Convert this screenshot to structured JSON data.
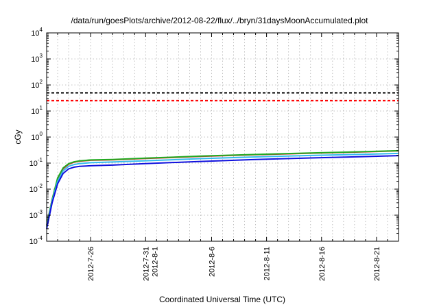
{
  "chart_data": {
    "type": "line",
    "title": "/data/run/goesPlots/archive/2012-08-22/flux/../bryn/31daysMoonAccumulated.plot",
    "xlabel": "Coordinated Universal Time (UTC)",
    "ylabel": "cGy",
    "y_scale": "log",
    "ylim": [
      0.0001,
      10000
    ],
    "xlim": [
      "2012-07-22",
      "2012-08-23"
    ],
    "grid": true,
    "y_ticks": [
      {
        "base": "10",
        "exp": "-4",
        "value": 0.0001
      },
      {
        "base": "10",
        "exp": "-3",
        "value": 0.001
      },
      {
        "base": "10",
        "exp": "-2",
        "value": 0.01
      },
      {
        "base": "10",
        "exp": "-1",
        "value": 0.1
      },
      {
        "base": "10",
        "exp": "0",
        "value": 1
      },
      {
        "base": "10",
        "exp": "1",
        "value": 10
      },
      {
        "base": "10",
        "exp": "2",
        "value": 100
      },
      {
        "base": "10",
        "exp": "3",
        "value": 1000
      },
      {
        "base": "10",
        "exp": "4",
        "value": 10000
      }
    ],
    "x_ticks": [
      {
        "date": "2012-07-26",
        "label": "2012-7-26",
        "label2": ""
      },
      {
        "date": "2012-07-31",
        "label": "2012-7-31",
        "label2": "2012-8-1"
      },
      {
        "date": "2012-08-06",
        "label": "2012-8-6",
        "label2": ""
      },
      {
        "date": "2012-08-11",
        "label": "2012-8-11",
        "label2": ""
      },
      {
        "date": "2012-08-16",
        "label": "2012-8-16",
        "label2": ""
      },
      {
        "date": "2012-08-21",
        "label": "2012-8-21",
        "label2": ""
      }
    ],
    "hlines": [
      {
        "value": 50,
        "color": "#000000",
        "style": "dashed"
      },
      {
        "value": 25,
        "color": "#ff0000",
        "style": "dashed"
      }
    ],
    "series": [
      {
        "color": "#e03030",
        "x": [
          "2012-07-22",
          "2012-07-22 12:00",
          "2012-07-23",
          "2012-07-23 12:00",
          "2012-07-24",
          "2012-07-24 12:00",
          "2012-07-25",
          "2012-07-26",
          "2012-07-28",
          "2012-07-31",
          "2012-08-05",
          "2012-08-10",
          "2012-08-15",
          "2012-08-20",
          "2012-08-23"
        ],
        "y": [
          0.0004,
          0.004,
          0.025,
          0.06,
          0.09,
          0.108,
          0.118,
          0.128,
          0.134,
          0.15,
          0.18,
          0.21,
          0.24,
          0.27,
          0.295
        ]
      },
      {
        "color": "#22aa22",
        "x": [
          "2012-07-22",
          "2012-07-22 12:00",
          "2012-07-23",
          "2012-07-23 12:00",
          "2012-07-24",
          "2012-07-24 12:00",
          "2012-07-25",
          "2012-07-26",
          "2012-07-28",
          "2012-07-31",
          "2012-08-05",
          "2012-08-10",
          "2012-08-15",
          "2012-08-20",
          "2012-08-23"
        ],
        "y": [
          0.0004,
          0.004,
          0.027,
          0.065,
          0.095,
          0.112,
          0.122,
          0.132,
          0.138,
          0.155,
          0.185,
          0.215,
          0.245,
          0.275,
          0.3
        ]
      },
      {
        "color": "#33bbee",
        "x": [
          "2012-07-22",
          "2012-07-22 12:00",
          "2012-07-23",
          "2012-07-23 12:00",
          "2012-07-24",
          "2012-07-24 12:00",
          "2012-07-25",
          "2012-07-26",
          "2012-07-28",
          "2012-07-31",
          "2012-08-05",
          "2012-08-10",
          "2012-08-15",
          "2012-08-20",
          "2012-08-23"
        ],
        "y": [
          0.00035,
          0.0035,
          0.02,
          0.05,
          0.075,
          0.088,
          0.096,
          0.104,
          0.11,
          0.123,
          0.148,
          0.172,
          0.196,
          0.218,
          0.235
        ]
      },
      {
        "color": "#1010dd",
        "x": [
          "2012-07-22",
          "2012-07-22 12:00",
          "2012-07-23",
          "2012-07-23 12:00",
          "2012-07-24",
          "2012-07-24 12:00",
          "2012-07-25",
          "2012-07-26",
          "2012-07-28",
          "2012-07-31",
          "2012-08-05",
          "2012-08-10",
          "2012-08-15",
          "2012-08-20",
          "2012-08-23"
        ],
        "y": [
          0.0003,
          0.003,
          0.016,
          0.04,
          0.06,
          0.07,
          0.075,
          0.079,
          0.084,
          0.096,
          0.116,
          0.137,
          0.158,
          0.178,
          0.193
        ]
      }
    ]
  }
}
